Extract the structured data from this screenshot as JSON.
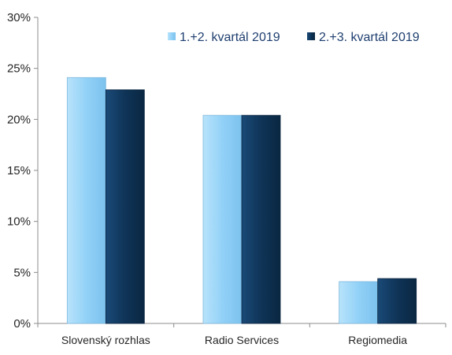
{
  "chart_data": {
    "type": "bar",
    "title": "",
    "xlabel": "",
    "ylabel": "",
    "categories": [
      "Slovenský rozhlas",
      "Radio Services",
      "Regiomedia"
    ],
    "series": [
      {
        "name": "1.+2. kvartál 2019",
        "values": [
          24.1,
          20.4,
          4.1
        ],
        "color": "#92d1f7"
      },
      {
        "name": "2.+3. kvartál 2019",
        "values": [
          22.9,
          20.4,
          4.4
        ],
        "color": "#0f3457"
      }
    ],
    "ylim": [
      0,
      30
    ],
    "yticks": [
      0,
      5,
      10,
      15,
      20,
      25,
      30
    ],
    "ytick_labels": [
      "0%",
      "5%",
      "10%",
      "15%",
      "20%",
      "25%",
      "30%"
    ],
    "grid": false,
    "legend_position": "top-right"
  }
}
